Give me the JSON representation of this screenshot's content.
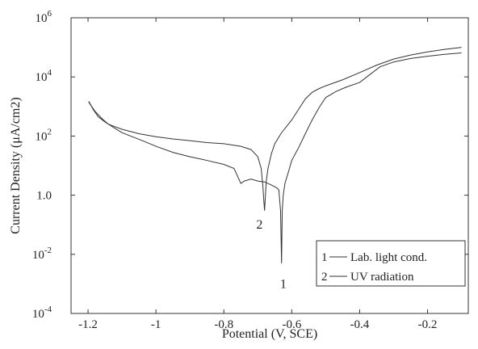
{
  "chart_data": {
    "type": "line",
    "xlabel": "Potential (V, SCE)",
    "ylabel": "Current Density (μA/cm2)",
    "xlim": [
      -1.25,
      -0.08
    ],
    "ylim_log10": [
      -4,
      6
    ],
    "y_scale": "log",
    "grid": false,
    "legend_position": "bottom-right",
    "x_ticks": [
      {
        "value": -1.2,
        "label": "-1.2"
      },
      {
        "value": -1.0,
        "label": "-1"
      },
      {
        "value": -0.8,
        "label": "-0.8"
      },
      {
        "value": -0.6,
        "label": "-0.6"
      },
      {
        "value": -0.4,
        "label": "-0.4"
      },
      {
        "value": -0.2,
        "label": "-0.2"
      }
    ],
    "y_ticks": [
      {
        "exp": 6,
        "base": "10",
        "sup": "6"
      },
      {
        "exp": 4,
        "base": "10",
        "sup": "4"
      },
      {
        "exp": 2,
        "base": "10",
        "sup": "2"
      },
      {
        "exp": 0,
        "base": "1.0",
        "sup": ""
      },
      {
        "exp": -2,
        "base": "10",
        "sup": "-2"
      },
      {
        "exp": -4,
        "base": "10",
        "sup": "-4"
      }
    ],
    "series": [
      {
        "name": "Lab. light cond.",
        "id": "1",
        "color": "#333333",
        "points": [
          [
            -1.198,
            1500
          ],
          [
            -1.185,
            800
          ],
          [
            -1.17,
            450
          ],
          [
            -1.15,
            300
          ],
          [
            -1.12,
            180
          ],
          [
            -1.1,
            130
          ],
          [
            -1.07,
            95
          ],
          [
            -1.04,
            70
          ],
          [
            -1.0,
            45
          ],
          [
            -0.95,
            28
          ],
          [
            -0.9,
            20
          ],
          [
            -0.85,
            15
          ],
          [
            -0.8,
            11
          ],
          [
            -0.77,
            8
          ],
          [
            -0.75,
            2.5
          ],
          [
            -0.74,
            3
          ],
          [
            -0.72,
            3.5
          ],
          [
            -0.7,
            3
          ],
          [
            -0.68,
            2.8
          ],
          [
            -0.66,
            2.2
          ],
          [
            -0.645,
            1.8
          ],
          [
            -0.638,
            1.5
          ],
          [
            -0.633,
            0.3
          ],
          [
            -0.63,
            0.005
          ],
          [
            -0.628,
            0.3
          ],
          [
            -0.625,
            1.0
          ],
          [
            -0.62,
            2.5
          ],
          [
            -0.61,
            6
          ],
          [
            -0.6,
            15
          ],
          [
            -0.58,
            40
          ],
          [
            -0.56,
            120
          ],
          [
            -0.54,
            350
          ],
          [
            -0.52,
            900
          ],
          [
            -0.5,
            2000
          ],
          [
            -0.47,
            3200
          ],
          [
            -0.44,
            4500
          ],
          [
            -0.4,
            6500
          ],
          [
            -0.37,
            12000
          ],
          [
            -0.34,
            22000
          ],
          [
            -0.3,
            32000
          ],
          [
            -0.25,
            42000
          ],
          [
            -0.2,
            50000
          ],
          [
            -0.15,
            58000
          ],
          [
            -0.1,
            65000
          ]
        ]
      },
      {
        "name": "UV radiation",
        "id": "2",
        "color": "#333333",
        "points": [
          [
            -1.198,
            1400
          ],
          [
            -1.18,
            700
          ],
          [
            -1.16,
            400
          ],
          [
            -1.14,
            250
          ],
          [
            -1.1,
            170
          ],
          [
            -1.05,
            120
          ],
          [
            -1.0,
            95
          ],
          [
            -0.95,
            80
          ],
          [
            -0.9,
            70
          ],
          [
            -0.85,
            60
          ],
          [
            -0.8,
            55
          ],
          [
            -0.75,
            45
          ],
          [
            -0.72,
            35
          ],
          [
            -0.7,
            20
          ],
          [
            -0.69,
            8
          ],
          [
            -0.685,
            2
          ],
          [
            -0.682,
            0.6
          ],
          [
            -0.68,
            0.3
          ],
          [
            -0.678,
            0.8
          ],
          [
            -0.675,
            3
          ],
          [
            -0.67,
            8
          ],
          [
            -0.66,
            25
          ],
          [
            -0.65,
            55
          ],
          [
            -0.63,
            130
          ],
          [
            -0.6,
            350
          ],
          [
            -0.58,
            800
          ],
          [
            -0.56,
            1800
          ],
          [
            -0.54,
            3000
          ],
          [
            -0.52,
            4000
          ],
          [
            -0.5,
            5000
          ],
          [
            -0.45,
            8000
          ],
          [
            -0.4,
            14000
          ],
          [
            -0.35,
            25000
          ],
          [
            -0.3,
            40000
          ],
          [
            -0.25,
            55000
          ],
          [
            -0.2,
            70000
          ],
          [
            -0.15,
            85000
          ],
          [
            -0.1,
            100000
          ]
        ]
      }
    ],
    "annotations": [
      {
        "text": "1",
        "x": -0.625,
        "y_log10": -3.0
      },
      {
        "text": "2",
        "x": -0.695,
        "y_log10": -1.0
      }
    ],
    "legend": [
      {
        "id": "1",
        "label": "Lab. light cond."
      },
      {
        "id": "2",
        "label": "UV radiation"
      }
    ]
  }
}
